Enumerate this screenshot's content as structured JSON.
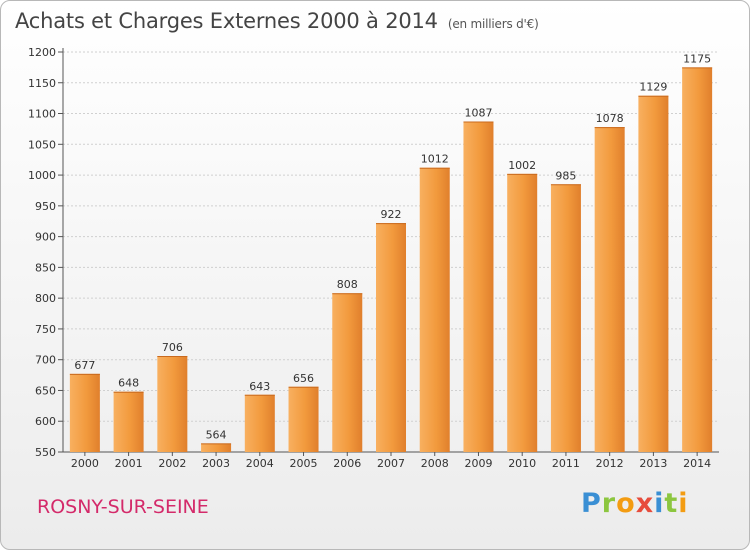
{
  "header": {
    "title": "Achats et Charges Externes 2000 à 2014",
    "subtitle": "(en milliers d'€)"
  },
  "footer": {
    "city": "ROSNY-SUR-SEINE",
    "logo": {
      "letters": [
        "P",
        "r",
        "o",
        "x",
        "i",
        "t",
        "i"
      ],
      "colors": [
        "#3a8fd4",
        "#8cc63f",
        "#f39c12",
        "#e74c3c",
        "#3a8fd4",
        "#8cc63f",
        "#f39c12"
      ]
    }
  },
  "chart_data": {
    "type": "bar",
    "title": "Achats et Charges Externes 2000 à 2014",
    "subtitle": "(en milliers d'€)",
    "categories": [
      "2000",
      "2001",
      "2002",
      "2003",
      "2004",
      "2005",
      "2006",
      "2007",
      "2008",
      "2009",
      "2010",
      "2011",
      "2012",
      "2013",
      "2014"
    ],
    "values": [
      677,
      648,
      706,
      564,
      643,
      656,
      808,
      922,
      1012,
      1087,
      1002,
      985,
      1078,
      1129,
      1175
    ],
    "ylim": [
      550,
      1200
    ],
    "yticks": [
      550,
      600,
      650,
      700,
      750,
      800,
      850,
      900,
      950,
      1000,
      1050,
      1100,
      1150,
      1200
    ],
    "xlabel": "",
    "ylabel": "",
    "grid": true,
    "bar_color": "#f29a3d",
    "bar_color_dark": "#e0782a"
  }
}
